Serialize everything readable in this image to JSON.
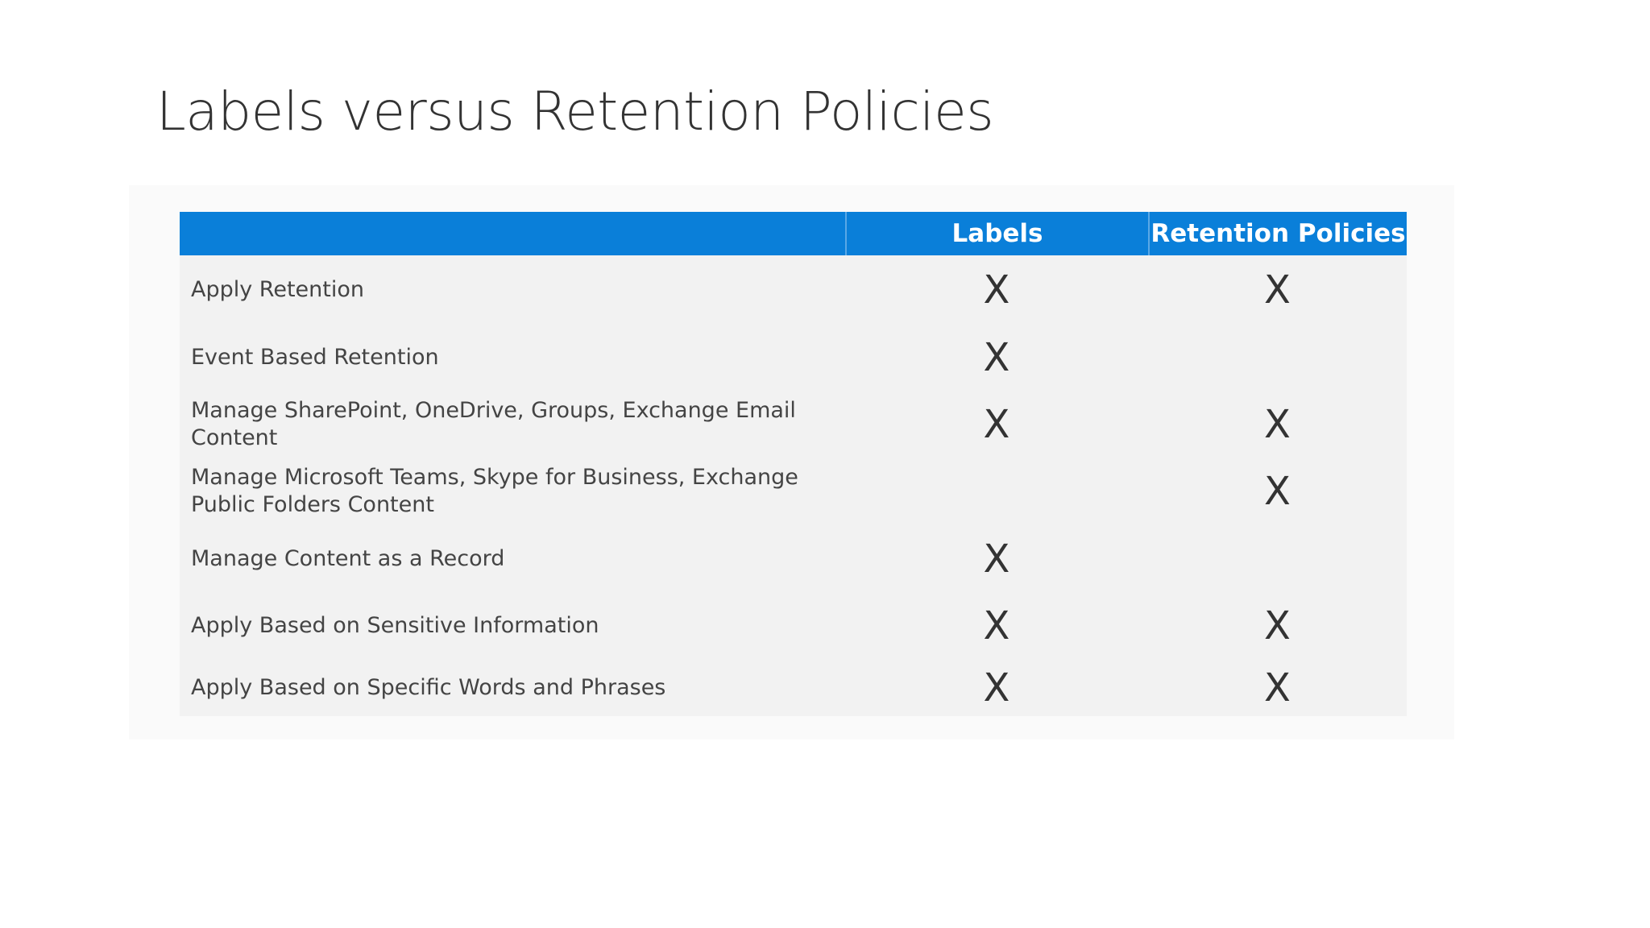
{
  "title": "Labels versus Retention Policies",
  "table": {
    "columns": [
      "Labels",
      "Retention Policies"
    ],
    "rows": [
      [
        "Apply Retention",
        "X",
        "X"
      ],
      [
        "Event Based Retention",
        "X",
        null
      ],
      [
        "Manage SharePoint, OneDrive, Groups, Exchange Email Content",
        "X",
        "X"
      ],
      [
        "Manage Microsoft Teams, Skype for Business, Exchange Public Folders Content",
        null,
        "X"
      ],
      [
        "Manage Content as a Record",
        "X",
        null
      ],
      [
        "Apply Based on Sensitive Information",
        "X",
        "X"
      ],
      [
        "Apply Based on Specific Words and Phrases",
        "X",
        "X"
      ]
    ]
  }
}
